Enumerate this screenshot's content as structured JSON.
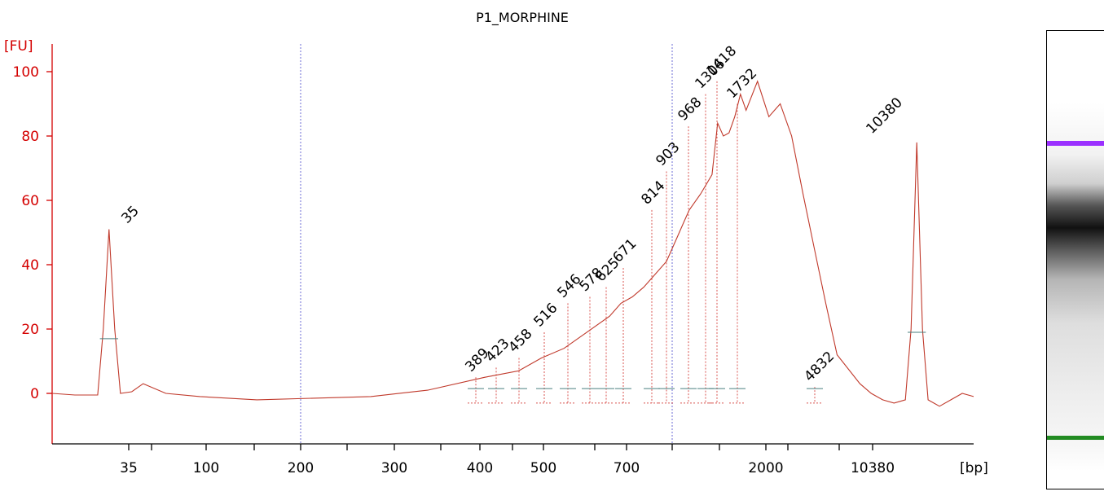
{
  "chart_data": {
    "type": "line",
    "title": "P1_MORPHINE",
    "ylabel": "[FU]",
    "xlabel": "[bp]",
    "ylim": [
      -15,
      108
    ],
    "yticks": [
      0,
      20,
      40,
      60,
      80,
      100
    ],
    "xtick_labels": [
      "35",
      "100",
      "200",
      "300",
      "400",
      "500",
      "700",
      "2000",
      "10380"
    ],
    "grid": false,
    "markers": [
      {
        "label": "35",
        "color": "#228b22",
        "peak_fu": 51
      },
      {
        "label": "10380",
        "color": "#9b30ff",
        "peak_fu": 78
      }
    ],
    "peaks": [
      {
        "label": "389",
        "fu": 5
      },
      {
        "label": "423",
        "fu": 8
      },
      {
        "label": "458",
        "fu": 11
      },
      {
        "label": "516",
        "fu": 19
      },
      {
        "label": "546",
        "fu": 28
      },
      {
        "label": "578",
        "fu": 30
      },
      {
        "label": "625",
        "fu": 33
      },
      {
        "label": "671",
        "fu": 39
      },
      {
        "label": "814",
        "fu": 57
      },
      {
        "label": "903",
        "fu": 69
      },
      {
        "label": "968",
        "fu": 83
      },
      {
        "label": "1306",
        "fu": 93
      },
      {
        "label": "1418",
        "fu": 97
      },
      {
        "label": "1732",
        "fu": 90
      },
      {
        "label": "4832",
        "fu": 2
      }
    ],
    "series": [
      {
        "color": "#c0392b",
        "time_s": [
          17,
          19,
          21,
          21.5,
          22,
          22.5,
          23,
          24,
          25,
          27,
          30,
          35,
          40,
          45,
          50,
          55,
          58,
          60,
          62,
          64,
          66,
          67,
          68,
          69,
          70,
          71,
          72,
          72.5,
          73,
          74,
          75,
          75.5,
          76,
          76.5,
          77,
          77.5,
          78,
          79,
          80,
          80.5,
          81,
          82,
          83,
          84,
          85,
          86,
          88,
          89,
          90,
          91,
          92,
          92.5,
          93,
          93.5,
          94,
          94.5,
          95,
          96,
          97,
          98
        ],
        "fu": [
          0,
          -0.5,
          -0.5,
          20,
          51,
          20,
          0,
          0.5,
          3,
          0,
          -1,
          -2,
          -1.5,
          -1,
          1,
          5,
          7,
          11,
          14,
          19,
          24,
          28,
          30,
          33,
          37,
          41,
          49,
          53,
          57,
          62,
          68,
          84,
          80,
          81,
          86,
          93,
          88,
          97,
          86,
          88,
          90,
          80,
          62,
          45,
          28,
          12,
          3,
          0,
          -2,
          -3,
          -2,
          20,
          78,
          20,
          -2,
          -3,
          -4,
          -2,
          0,
          -1
        ]
      }
    ]
  }
}
